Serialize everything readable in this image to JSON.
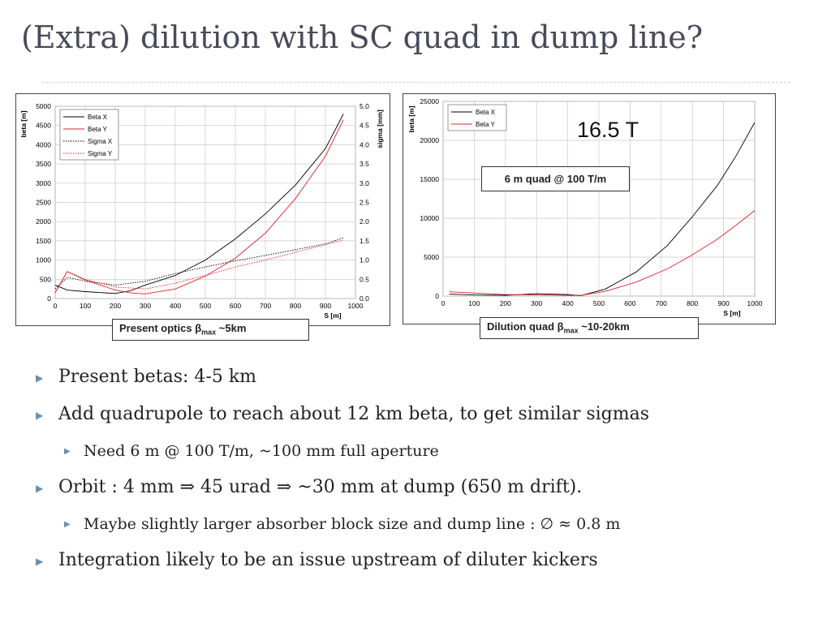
{
  "slide": {
    "title": "(Extra) dilution with SC quad in dump line?"
  },
  "bullets": [
    {
      "level": 1,
      "text": "Present betas: 4-5 km"
    },
    {
      "level": 1,
      "text": "Add quadrupole to reach about 12 km beta, to get similar sigmas"
    },
    {
      "level": 2,
      "text": "Need 6 m @ 100 T/m, ~100 mm full aperture"
    },
    {
      "level": 1,
      "text": "Orbit : 4 mm ⇒ 45 urad ⇒ ~30 mm at dump (650 m drift)."
    },
    {
      "level": 2,
      "text": "Maybe slightly larger absorber block size and dump line : ∅ ≈ 0.8 m"
    },
    {
      "level": 1,
      "text": "Integration likely to be an issue upstream of diluter kickers"
    }
  ],
  "captions": {
    "left_pre": "Present optics β",
    "left_sub": "max",
    "left_post": " ~5km",
    "right_pre": "Dilution quad β",
    "right_sub": "max",
    "right_post": " ~10-20km",
    "big_label": "16.5 T",
    "quad_box": "6 m quad @ 100 T/m"
  },
  "colors": {
    "beta_x": "#000000",
    "beta_y": "#e8202a",
    "arrow": "#6a8fb0"
  },
  "chart_data": [
    {
      "type": "line",
      "name": "present-optics",
      "xlabel": "S [m]",
      "ylabel": "beta [m]",
      "y2label": "sigma [mm]",
      "xlim": [
        0,
        1000
      ],
      "ylim": [
        0,
        5000
      ],
      "y2lim": [
        0,
        5.0
      ],
      "xticks": [
        0,
        100,
        200,
        300,
        400,
        500,
        600,
        700,
        800,
        900,
        1000
      ],
      "yticks": [
        0,
        500,
        1000,
        1500,
        2000,
        2500,
        3000,
        3500,
        4000,
        4500,
        5000
      ],
      "y2ticks": [
        "0.0",
        "0.5",
        "1.0",
        "1.5",
        "2.0",
        "2.5",
        "3.0",
        "3.5",
        "4.0",
        "4.5",
        "5.0"
      ],
      "grid": true,
      "legend": "top-left",
      "series": [
        {
          "name": "Beta X",
          "axis": "y",
          "style": "solid",
          "color": "#000000",
          "x": [
            0,
            40,
            100,
            200,
            250,
            300,
            400,
            500,
            600,
            700,
            800,
            900,
            960
          ],
          "y": [
            350,
            220,
            180,
            130,
            200,
            350,
            600,
            1000,
            1550,
            2200,
            2950,
            3900,
            4800
          ]
        },
        {
          "name": "Beta Y",
          "axis": "y",
          "style": "solid",
          "color": "#e8202a",
          "x": [
            0,
            40,
            100,
            200,
            250,
            300,
            400,
            500,
            600,
            700,
            800,
            900,
            960
          ],
          "y": [
            150,
            700,
            480,
            220,
            150,
            120,
            250,
            580,
            1050,
            1700,
            2600,
            3700,
            4650
          ]
        },
        {
          "name": "Sigma X",
          "axis": "y2",
          "style": "dotted",
          "color": "#000000",
          "x": [
            0,
            40,
            100,
            200,
            300,
            400,
            500,
            600,
            700,
            800,
            900,
            960
          ],
          "y": [
            0.25,
            0.55,
            0.45,
            0.35,
            0.45,
            0.65,
            0.82,
            0.98,
            1.12,
            1.27,
            1.42,
            1.58
          ]
        },
        {
          "name": "Sigma Y",
          "axis": "y2",
          "style": "dotted",
          "color": "#e8202a",
          "x": [
            0,
            40,
            100,
            200,
            300,
            400,
            500,
            600,
            700,
            800,
            900,
            960
          ],
          "y": [
            0.15,
            0.7,
            0.5,
            0.3,
            0.25,
            0.4,
            0.6,
            0.82,
            1.0,
            1.2,
            1.4,
            1.52
          ]
        }
      ]
    },
    {
      "type": "line",
      "name": "dilution-quad",
      "xlabel": "S [m]",
      "ylabel": "beta [m]",
      "xlim": [
        0,
        1000
      ],
      "ylim": [
        0,
        25000
      ],
      "xticks": [
        0,
        100,
        200,
        300,
        400,
        500,
        600,
        700,
        800,
        900,
        1000
      ],
      "yticks": [
        0,
        5000,
        10000,
        15000,
        20000,
        25000
      ],
      "grid": true,
      "legend": "top-left",
      "series": [
        {
          "name": "Beta X",
          "style": "solid",
          "color": "#000000",
          "x": [
            20,
            100,
            200,
            300,
            400,
            440,
            520,
            620,
            720,
            800,
            880,
            940,
            1000
          ],
          "y": [
            250,
            150,
            100,
            300,
            200,
            50,
            900,
            3100,
            6500,
            10200,
            14200,
            18000,
            22300
          ]
        },
        {
          "name": "Beta Y",
          "style": "solid",
          "color": "#e8202a",
          "x": [
            20,
            100,
            200,
            300,
            400,
            440,
            520,
            620,
            720,
            800,
            880,
            940,
            1000
          ],
          "y": [
            550,
            400,
            200,
            150,
            100,
            80,
            600,
            1800,
            3500,
            5300,
            7300,
            9100,
            11000
          ]
        }
      ]
    }
  ]
}
